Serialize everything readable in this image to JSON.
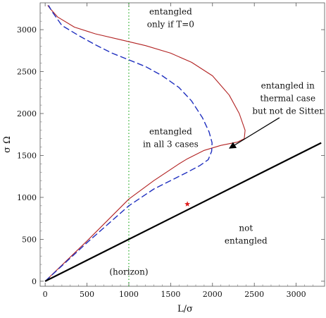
{
  "chart_data": {
    "type": "line",
    "title": "",
    "xlabel": "L/σ",
    "ylabel": "σ Ω",
    "xlim": [
      -60,
      3340
    ],
    "ylim": [
      -60,
      3320
    ],
    "xticks": [
      0,
      500,
      1000,
      1500,
      2000,
      2500,
      3000
    ],
    "yticks": [
      0,
      500,
      1000,
      1500,
      2000,
      2500,
      3000
    ],
    "grid": false,
    "frame": "box",
    "colors": {
      "thermal": "#b22222",
      "de_sitter": "#1f2fbf",
      "boundary": "#000000",
      "horizon": "#22aa22",
      "star": "#e02020",
      "arrow": "#000000"
    },
    "series": [
      {
        "key": "thermal",
        "style": "solid",
        "points": [
          [
            0,
            0
          ],
          [
            500,
            480
          ],
          [
            1000,
            980
          ],
          [
            1300,
            1200
          ],
          [
            1600,
            1400
          ],
          [
            1700,
            1460
          ],
          [
            1900,
            1560
          ],
          [
            2100,
            1620
          ],
          [
            2300,
            1660
          ],
          [
            2380,
            1700
          ],
          [
            2390,
            1800
          ],
          [
            2320,
            2000
          ],
          [
            2200,
            2220
          ],
          [
            2000,
            2450
          ],
          [
            1750,
            2610
          ],
          [
            1500,
            2720
          ],
          [
            1200,
            2810
          ],
          [
            900,
            2880
          ],
          [
            600,
            2950
          ],
          [
            350,
            3030
          ],
          [
            150,
            3150
          ],
          [
            60,
            3250
          ],
          [
            30,
            3290
          ]
        ]
      },
      {
        "key": "de_sitter",
        "style": "dashed",
        "points": [
          [
            0,
            0
          ],
          [
            500,
            460
          ],
          [
            1000,
            900
          ],
          [
            1300,
            1100
          ],
          [
            1500,
            1200
          ],
          [
            1700,
            1300
          ],
          [
            1850,
            1380
          ],
          [
            1950,
            1450
          ],
          [
            1990,
            1550
          ],
          [
            1995,
            1650
          ],
          [
            1960,
            1780
          ],
          [
            1880,
            1950
          ],
          [
            1750,
            2150
          ],
          [
            1600,
            2310
          ],
          [
            1400,
            2450
          ],
          [
            1200,
            2560
          ],
          [
            1000,
            2640
          ],
          [
            800,
            2720
          ],
          [
            600,
            2820
          ],
          [
            400,
            2930
          ],
          [
            200,
            3050
          ],
          [
            80,
            3220
          ],
          [
            40,
            3290
          ]
        ]
      },
      {
        "key": "boundary",
        "style": "solid-thick",
        "points": [
          [
            0,
            0
          ],
          [
            3300,
            1650
          ]
        ]
      }
    ],
    "horizon_line_x": 1000,
    "star_point": [
      1700,
      920
    ],
    "annotations": [
      {
        "key": "only_t0",
        "lines": [
          "entangled",
          "only if T=0"
        ],
        "at": [
          1500,
          3180
        ]
      },
      {
        "key": "all_three",
        "lines": [
          "entangled",
          "in all 3 cases"
        ],
        "at": [
          1500,
          1750
        ]
      },
      {
        "key": "thermal_not_ds",
        "lines": [
          "entangled in",
          "thermal case",
          "but not de Sitter"
        ],
        "at": [
          2900,
          2300
        ]
      },
      {
        "key": "not_entangled",
        "lines": [
          "not",
          "entangled"
        ],
        "at": [
          2400,
          600
        ]
      },
      {
        "key": "horizon",
        "lines": [
          "(horizon)"
        ],
        "at": [
          1000,
          80
        ]
      }
    ],
    "arrow": {
      "from": [
        2800,
        1950
      ],
      "to": [
        2210,
        1590
      ]
    }
  }
}
